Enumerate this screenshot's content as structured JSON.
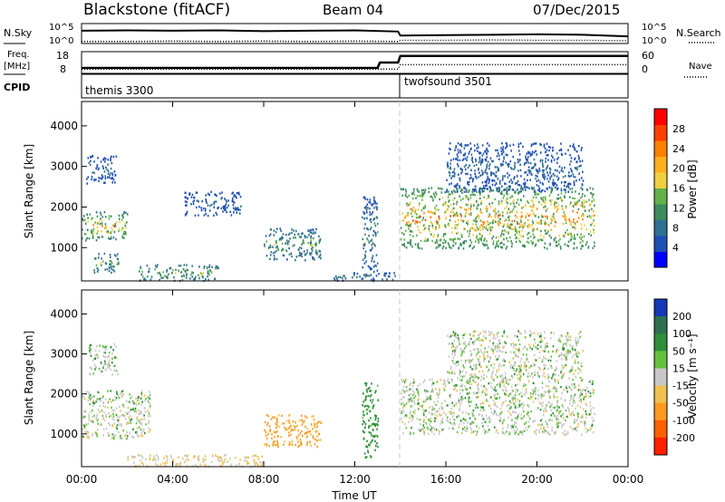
{
  "header": {
    "title": "Blackstone (fitACF)",
    "beam": "Beam 04",
    "date": "07/Dec/2015"
  },
  "left_labels": {
    "nsky": "N.Sky",
    "freq_line1": "Freq.",
    "freq_line2": "[MHz]",
    "cpid": "CPID"
  },
  "right_labels": {
    "nsearch": "N.Search",
    "nave": "Nave"
  },
  "noise_panel": {
    "left_ticks": [
      "10^5",
      "10^0"
    ],
    "right_ticks": [
      "10^5",
      "10^0"
    ]
  },
  "freq_panel": {
    "left_ticks": [
      "18",
      "8"
    ],
    "right_ticks": [
      "60",
      "0"
    ]
  },
  "cpid_panel": {
    "modes": [
      {
        "label": "themis 3300",
        "start_hour": 0
      },
      {
        "label": "twofsound 3501",
        "start_hour": 14
      }
    ]
  },
  "axes": {
    "xlabel": "Time UT",
    "ylabel": "Slant Range [km]",
    "x_ticks": [
      "00:00",
      "04:00",
      "08:00",
      "12:00",
      "16:00",
      "20:00",
      "00:00"
    ],
    "y_ticks": [
      "1000",
      "2000",
      "3000",
      "4000"
    ]
  },
  "colorbars": {
    "power": {
      "label": "Power [dB]",
      "ticks": [
        "4",
        "8",
        "12",
        "16",
        "20",
        "24",
        "28"
      ],
      "colors": [
        "#0000ff",
        "#1f4fb4",
        "#2f6f90",
        "#3d8a5e",
        "#62b04a",
        "#f0d040",
        "#ffb020",
        "#ff8000",
        "#ff4000",
        "#ff0000"
      ]
    },
    "velocity": {
      "label": "Velocity [m s⁻¹]",
      "ticks": [
        "200",
        "100",
        "50",
        "15",
        "-15",
        "-50",
        "-100",
        "-200"
      ],
      "colors": [
        "#1638b8",
        "#2d7050",
        "#2f8f3a",
        "#66c040",
        "#c8c8c8",
        "#f0c050",
        "#ff9a20",
        "#ff6000",
        "#ff2000"
      ]
    }
  },
  "chart_data": [
    {
      "type": "line",
      "name": "noise",
      "x": [
        0,
        2,
        4,
        6,
        8,
        10,
        12,
        13.9,
        14,
        16,
        18,
        20,
        22,
        24
      ],
      "series": [
        {
          "name": "N.Sky",
          "values": [
            3.2,
            3.3,
            3.2,
            3.3,
            3.1,
            3.2,
            3.3,
            3.0,
            2.0,
            2.1,
            2.2,
            2.3,
            2.2,
            1.8
          ]
        },
        {
          "name": "N.Search",
          "values": [
            0.5,
            0.5,
            0.6,
            0.5,
            0.6,
            0.5,
            0.6,
            0.5,
            0.8,
            0.8,
            0.9,
            0.8,
            0.8,
            0.7
          ]
        }
      ]
    },
    {
      "type": "line",
      "name": "frequency-nave",
      "x": [
        0,
        4,
        8,
        12,
        13.0,
        13.1,
        13.9,
        14,
        16,
        20,
        24
      ],
      "series": [
        {
          "name": "Freq",
          "values": [
            10.5,
            10.5,
            10.5,
            10.5,
            10.5,
            13.0,
            13.0,
            16.0,
            16.0,
            16.0,
            16.0
          ]
        },
        {
          "name": "Nave",
          "values": [
            10,
            10,
            10,
            10,
            10,
            10,
            10,
            12,
            12,
            12,
            12
          ]
        }
      ]
    },
    {
      "type": "heatmap",
      "name": "power",
      "xlim": [
        0,
        24
      ],
      "ylim": [
        180,
        4600
      ],
      "scale": [
        0,
        30
      ],
      "regions": [
        {
          "t0": 0.0,
          "t1": 2.0,
          "r0": 1200,
          "r1": 1900,
          "peak": 24
        },
        {
          "t0": 0.2,
          "t1": 1.5,
          "r0": 2600,
          "r1": 3300,
          "peak": 10
        },
        {
          "t0": 0.5,
          "t1": 1.6,
          "r0": 400,
          "r1": 900,
          "peak": 18
        },
        {
          "t0": 4.5,
          "t1": 7.0,
          "r0": 1800,
          "r1": 2400,
          "peak": 9
        },
        {
          "t0": 2.5,
          "t1": 6.0,
          "r0": 200,
          "r1": 600,
          "peak": 18
        },
        {
          "t0": 8.0,
          "t1": 10.5,
          "r0": 700,
          "r1": 1500,
          "peak": 16
        },
        {
          "t0": 12.3,
          "t1": 13.0,
          "r0": 400,
          "r1": 2300,
          "peak": 14
        },
        {
          "t0": 14.0,
          "t1": 22.5,
          "r0": 1000,
          "r1": 2500,
          "peak": 27
        },
        {
          "t0": 16.0,
          "t1": 22.0,
          "r0": 2400,
          "r1": 3600,
          "peak": 10
        },
        {
          "t0": 11.0,
          "t1": 14.0,
          "r0": 200,
          "r1": 400,
          "peak": 12
        }
      ]
    },
    {
      "type": "heatmap",
      "name": "velocity",
      "xlim": [
        0,
        24
      ],
      "ylim": [
        180,
        4600
      ],
      "scale": [
        -200,
        200
      ],
      "regions": [
        {
          "t0": 0.0,
          "t1": 3.0,
          "r0": 900,
          "r1": 2100,
          "v": 0
        },
        {
          "t0": 0.3,
          "t1": 1.6,
          "r0": 2500,
          "r1": 3300,
          "v": 5
        },
        {
          "t0": 8.0,
          "t1": 10.5,
          "r0": 700,
          "r1": 1500,
          "v": -60
        },
        {
          "t0": 2.0,
          "t1": 8.0,
          "r0": 200,
          "r1": 500,
          "v": -20
        },
        {
          "t0": 12.3,
          "t1": 13.0,
          "r0": 400,
          "r1": 2300,
          "v": 30
        },
        {
          "t0": 14.0,
          "t1": 22.5,
          "r0": 1000,
          "r1": 2400,
          "v": 0
        },
        {
          "t0": 16.0,
          "t1": 22.0,
          "r0": 2400,
          "r1": 3600,
          "v": 0
        }
      ]
    }
  ]
}
